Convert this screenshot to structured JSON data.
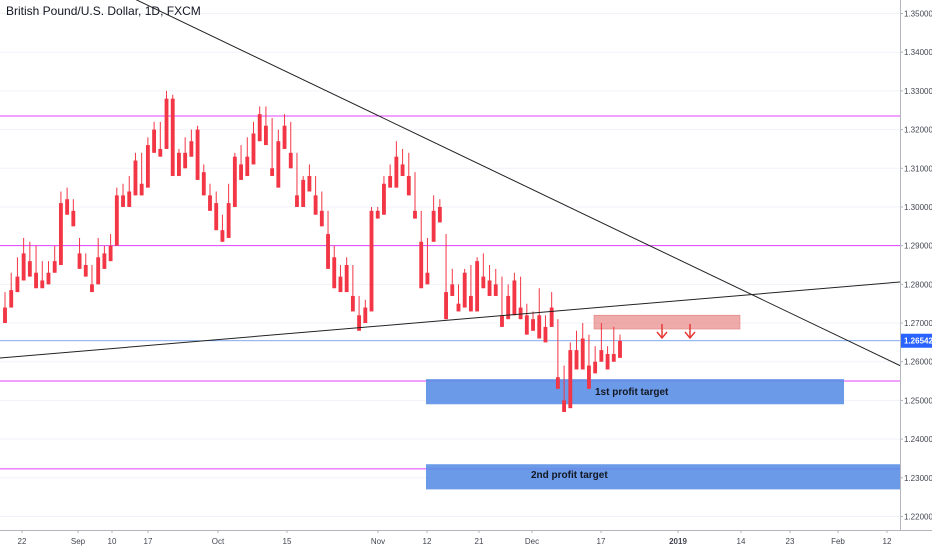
{
  "chart_data": {
    "type": "candlestick",
    "title": "British Pound/U.S. Dollar, 1D, FXCM",
    "ylim": [
      1.2165,
      1.3535
    ],
    "y_ticks": [
      1.22,
      1.23,
      1.24,
      1.25,
      1.26,
      1.27,
      1.28,
      1.29,
      1.3,
      1.31,
      1.32,
      1.33,
      1.34,
      1.35
    ],
    "y_tick_labels": [
      "1.22000",
      "1.23000",
      "1.24000",
      "1.25000",
      "1.26000",
      "1.27000",
      "1.28000",
      "1.29000",
      "1.30000",
      "1.31000",
      "1.32000",
      "1.33000",
      "1.34000",
      "1.35000"
    ],
    "x_tick_labels": [
      "22",
      "Sep",
      "10",
      "17",
      "Oct",
      "15",
      "Nov",
      "12",
      "21",
      "Dec",
      "17",
      "2019",
      "14",
      "23",
      "Feb",
      "12"
    ],
    "last_price": "1.26542",
    "colors": {
      "up": "#2962ff",
      "down": "#f23645",
      "level": "#e040fb",
      "zone": "#5b8fe6",
      "resist": "#e57373",
      "trend": "#222222",
      "last": "#5b8fe6"
    },
    "horizontal_levels": [
      1.3235,
      1.29,
      1.255,
      1.2323
    ],
    "trendlines": [
      {
        "from": [
          1.361,
          0
        ],
        "to": [
          1.2585,
          1
        ]
      },
      {
        "from": [
          1.261,
          0
        ],
        "to": [
          1.28,
          1
        ]
      }
    ],
    "zones": [
      {
        "label": "1st profit target",
        "y1": 1.2555,
        "y2": 1.249
      },
      {
        "label": "2nd profit target",
        "y1": 1.2335,
        "y2": 1.227
      }
    ],
    "resistance_zone": {
      "y1": 1.2715,
      "y2": 1.27
    },
    "arrow_icons": [
      "arrow-down-icon",
      "arrow-down-icon"
    ],
    "candles": [
      [
        1.274,
        1.278,
        1.271,
        1.27
      ],
      [
        1.2785,
        1.283,
        1.277,
        1.274
      ],
      [
        1.282,
        1.287,
        1.279,
        1.278
      ],
      [
        1.288,
        1.292,
        1.282,
        1.281
      ],
      [
        1.286,
        1.291,
        1.283,
        1.282
      ],
      [
        1.283,
        1.29,
        1.28,
        1.279
      ],
      [
        1.281,
        1.286,
        1.28,
        1.279
      ],
      [
        1.283,
        1.286,
        1.282,
        1.28
      ],
      [
        1.286,
        1.29,
        1.284,
        1.283
      ],
      [
        1.301,
        1.304,
        1.286,
        1.285
      ],
      [
        1.302,
        1.305,
        1.3,
        1.298
      ],
      [
        1.299,
        1.302,
        1.296,
        1.295
      ],
      [
        1.288,
        1.292,
        1.285,
        1.284
      ],
      [
        1.285,
        1.288,
        1.284,
        1.282
      ],
      [
        1.28,
        1.285,
        1.279,
        1.278
      ],
      [
        1.287,
        1.292,
        1.281,
        1.28
      ],
      [
        1.288,
        1.29,
        1.285,
        1.284
      ],
      [
        1.29,
        1.293,
        1.288,
        1.286
      ],
      [
        1.303,
        1.305,
        1.291,
        1.29
      ],
      [
        1.303,
        1.306,
        1.303,
        1.3
      ],
      [
        1.304,
        1.308,
        1.302,
        1.3
      ],
      [
        1.312,
        1.314,
        1.305,
        1.303
      ],
      [
        1.306,
        1.314,
        1.305,
        1.303
      ],
      [
        1.316,
        1.318,
        1.306,
        1.305
      ],
      [
        1.32,
        1.322,
        1.316,
        1.314
      ],
      [
        1.315,
        1.322,
        1.315,
        1.313
      ],
      [
        1.328,
        1.33,
        1.316,
        1.315
      ],
      [
        1.328,
        1.329,
        1.31,
        1.308
      ],
      [
        1.314,
        1.315,
        1.31,
        1.308
      ],
      [
        1.314,
        1.318,
        1.312,
        1.31
      ],
      [
        1.317,
        1.32,
        1.315,
        1.313
      ],
      [
        1.32,
        1.321,
        1.308,
        1.307
      ],
      [
        1.309,
        1.311,
        1.304,
        1.303
      ],
      [
        1.303,
        1.306,
        1.3,
        1.299
      ],
      [
        1.301,
        1.304,
        1.295,
        1.294
      ],
      [
        1.294,
        1.298,
        1.292,
        1.291
      ],
      [
        1.301,
        1.306,
        1.294,
        1.292
      ],
      [
        1.313,
        1.314,
        1.301,
        1.3
      ],
      [
        1.311,
        1.316,
        1.308,
        1.307
      ],
      [
        1.313,
        1.318,
        1.309,
        1.308
      ],
      [
        1.319,
        1.322,
        1.313,
        1.311
      ],
      [
        1.324,
        1.326,
        1.318,
        1.317
      ],
      [
        1.321,
        1.326,
        1.318,
        1.316
      ],
      [
        1.31,
        1.323,
        1.309,
        1.308
      ],
      [
        1.317,
        1.32,
        1.307,
        1.305
      ],
      [
        1.321,
        1.324,
        1.317,
        1.315
      ],
      [
        1.314,
        1.322,
        1.311,
        1.31
      ],
      [
        1.303,
        1.314,
        1.301,
        1.3
      ],
      [
        1.307,
        1.308,
        1.301,
        1.3
      ],
      [
        1.308,
        1.311,
        1.306,
        1.304
      ],
      [
        1.303,
        1.308,
        1.299,
        1.298
      ],
      [
        1.299,
        1.304,
        1.296,
        1.295
      ],
      [
        1.293,
        1.299,
        1.285,
        1.284
      ],
      [
        1.287,
        1.29,
        1.28,
        1.279
      ],
      [
        1.282,
        1.285,
        1.28,
        1.278
      ],
      [
        1.285,
        1.287,
        1.28,
        1.278
      ],
      [
        1.277,
        1.285,
        1.274,
        1.273
      ],
      [
        1.272,
        1.277,
        1.269,
        1.268
      ],
      [
        1.274,
        1.276,
        1.271,
        1.27
      ],
      [
        1.299,
        1.3,
        1.274,
        1.273
      ],
      [
        1.299,
        1.3,
        1.298,
        1.297
      ],
      [
        1.306,
        1.308,
        1.299,
        1.298
      ],
      [
        1.308,
        1.311,
        1.307,
        1.305
      ],
      [
        1.313,
        1.317,
        1.306,
        1.305
      ],
      [
        1.311,
        1.315,
        1.31,
        1.308
      ],
      [
        1.308,
        1.314,
        1.304,
        1.303
      ],
      [
        1.299,
        1.309,
        1.298,
        1.297
      ],
      [
        1.291,
        1.299,
        1.28,
        1.279
      ],
      [
        1.283,
        1.292,
        1.281,
        1.28
      ],
      [
        1.299,
        1.303,
        1.292,
        1.291
      ],
      [
        1.3,
        1.302,
        1.297,
        1.296
      ],
      [
        1.278,
        1.293,
        1.272,
        1.271
      ],
      [
        1.28,
        1.284,
        1.278,
        1.277
      ],
      [
        1.275,
        1.28,
        1.274,
        1.273
      ],
      [
        1.283,
        1.284,
        1.275,
        1.274
      ],
      [
        1.277,
        1.285,
        1.274,
        1.273
      ],
      [
        1.286,
        1.287,
        1.274,
        1.273
      ],
      [
        1.282,
        1.288,
        1.28,
        1.279
      ],
      [
        1.281,
        1.285,
        1.278,
        1.277
      ],
      [
        1.28,
        1.284,
        1.278,
        1.277
      ],
      [
        1.272,
        1.282,
        1.27,
        1.269
      ],
      [
        1.277,
        1.28,
        1.272,
        1.271
      ],
      [
        1.281,
        1.283,
        1.273,
        1.272
      ],
      [
        1.274,
        1.282,
        1.272,
        1.271
      ],
      [
        1.272,
        1.275,
        1.268,
        1.267
      ],
      [
        1.271,
        1.273,
        1.269,
        1.268
      ],
      [
        1.272,
        1.279,
        1.267,
        1.266
      ],
      [
        1.269,
        1.272,
        1.266,
        1.265
      ],
      [
        1.274,
        1.278,
        1.27,
        1.269
      ],
      [
        1.256,
        1.271,
        1.254,
        1.253
      ],
      [
        1.25,
        1.259,
        1.248,
        1.247
      ],
      [
        1.263,
        1.265,
        1.249,
        1.248
      ],
      [
        1.263,
        1.268,
        1.259,
        1.258
      ],
      [
        1.266,
        1.27,
        1.259,
        1.258
      ],
      [
        1.259,
        1.267,
        1.254,
        1.253
      ],
      [
        1.26,
        1.264,
        1.258,
        1.257
      ],
      [
        1.263,
        1.27,
        1.261,
        1.26
      ],
      [
        1.262,
        1.264,
        1.259,
        1.258
      ],
      [
        1.262,
        1.269,
        1.26,
        1.26
      ],
      [
        1.2654,
        1.267,
        1.262,
        1.261
      ]
    ]
  }
}
